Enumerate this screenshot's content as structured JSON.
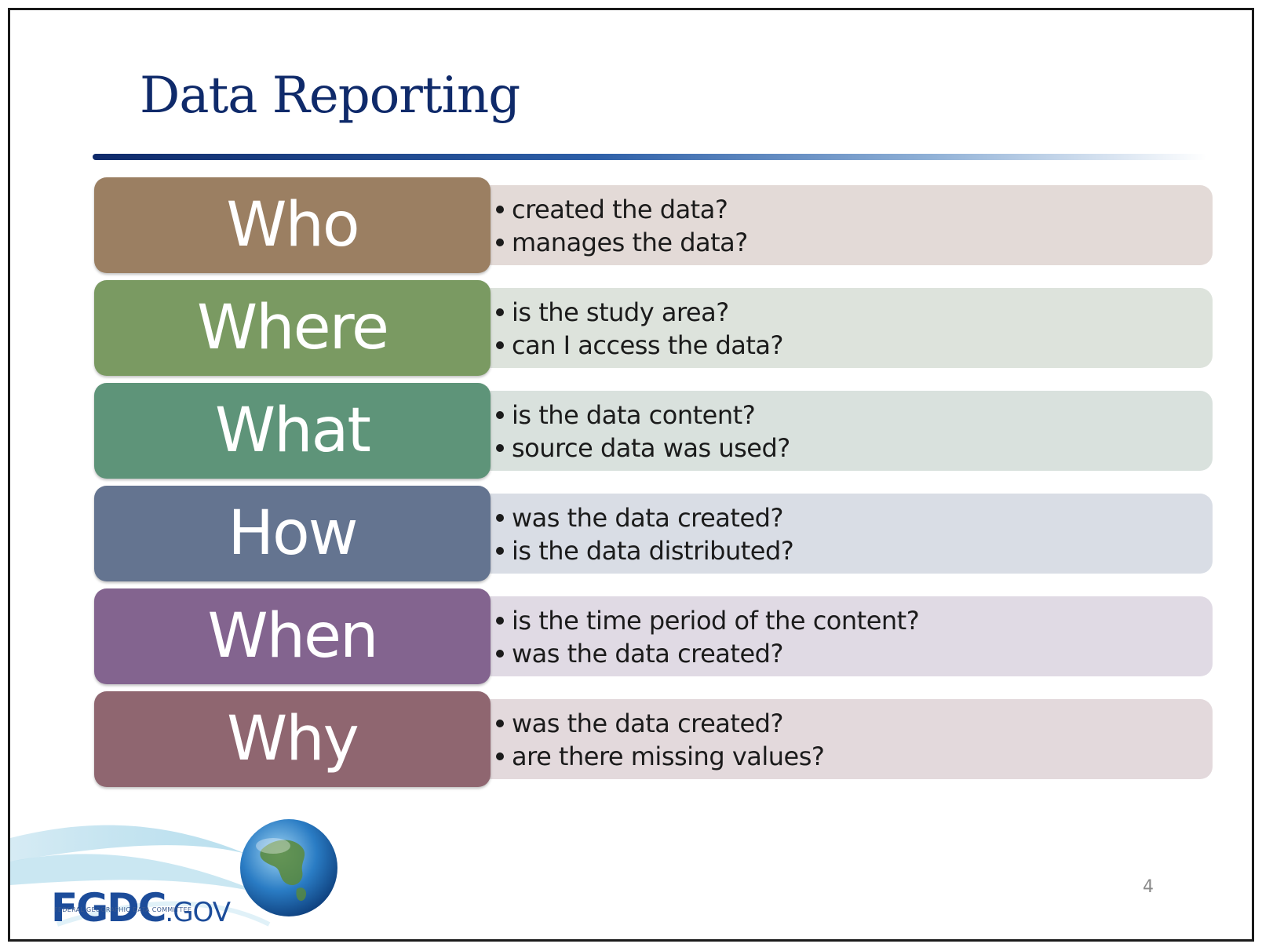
{
  "slide": {
    "title": "Data Reporting",
    "page_number": "4"
  },
  "rows": [
    {
      "label": "Who",
      "color": "#9b7f62",
      "desc_color": "#e3dad7",
      "bullets": [
        "created the data?",
        "manages the data?"
      ]
    },
    {
      "label": "Where",
      "color": "#7a9a62",
      "desc_color": "#dde3dc",
      "bullets": [
        "is the study area?",
        "can I access the data?"
      ]
    },
    {
      "label": "What",
      "color": "#5e9479",
      "desc_color": "#d9e1dd",
      "bullets": [
        "is the data content?",
        "source data was used?"
      ]
    },
    {
      "label": "How",
      "color": "#647490",
      "desc_color": "#d9dde5",
      "bullets": [
        "was the data created?",
        "is the data distributed?"
      ]
    },
    {
      "label": "When",
      "color": "#83648f",
      "desc_color": "#e0dae4",
      "bullets": [
        "is the time period of the content?",
        "was the data created?"
      ]
    },
    {
      "label": "Why",
      "color": "#8f6670",
      "desc_color": "#e3d9dc",
      "bullets": [
        "was the data created?",
        "are there missing values?"
      ]
    }
  ],
  "logo": {
    "brand": "FGDC",
    "suffix": ".GOV",
    "tagline": "FEDERAL GEOGRAPHIC DATA COMMITTEE",
    "icon": "globe-icon"
  }
}
